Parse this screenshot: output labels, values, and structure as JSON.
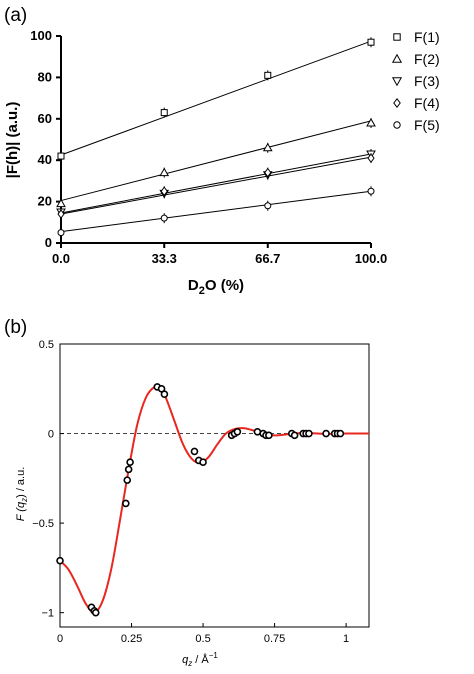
{
  "chart_data": [
    {
      "panel": "(a)",
      "type": "scatter",
      "xlabel": "D2O (%)",
      "ylabel": "|F(h)| (a.u.)",
      "xlim": [
        0,
        100
      ],
      "ylim": [
        0,
        100
      ],
      "x_ticks": [
        "0.0",
        "33.3",
        "66.7",
        "100.0"
      ],
      "y_ticks": [
        "0",
        "20",
        "40",
        "60",
        "80",
        "100"
      ],
      "legend_position": "right",
      "series": [
        {
          "name": "F(1)",
          "marker": "square",
          "x": [
            0,
            33.3,
            66.7,
            100
          ],
          "y": [
            42,
            63,
            81,
            97
          ]
        },
        {
          "name": "F(2)",
          "marker": "triangle-up",
          "x": [
            0,
            33.3,
            66.7,
            100
          ],
          "y": [
            19,
            34,
            46,
            58
          ]
        },
        {
          "name": "F(3)",
          "marker": "triangle-down",
          "x": [
            0,
            33.3,
            66.7,
            100
          ],
          "y": [
            15,
            24,
            33,
            43
          ]
        },
        {
          "name": "F(4)",
          "marker": "diamond",
          "x": [
            0,
            33.3,
            66.7,
            100
          ],
          "y": [
            14,
            25,
            34,
            41
          ]
        },
        {
          "name": "F(5)",
          "marker": "circle",
          "x": [
            0,
            33.3,
            66.7,
            100
          ],
          "y": [
            5,
            12,
            18,
            25
          ]
        }
      ],
      "fit_lines": [
        {
          "series": "F(1)",
          "intercept": 42.5,
          "slope": 0.55
        },
        {
          "series": "F(2)",
          "intercept": 20.5,
          "slope": 0.385
        },
        {
          "series": "F(3)",
          "intercept": 14.5,
          "slope": 0.285
        },
        {
          "series": "F(4)",
          "intercept": 14.0,
          "slope": 0.275
        },
        {
          "series": "F(5)",
          "intercept": 5.5,
          "slope": 0.195
        }
      ]
    },
    {
      "panel": "(b)",
      "type": "scatter",
      "xlabel": "q_z / Å⁻¹",
      "ylabel": "F (q_z) / a.u.",
      "xlim": [
        0,
        1.08
      ],
      "ylim": [
        -1.08,
        0.5
      ],
      "x_ticks": [
        "0",
        "0.25",
        "0.5",
        "0.75",
        "1"
      ],
      "y_ticks": [
        "0.5",
        "0",
        "-0.5",
        "-1"
      ],
      "zero_line": "dashed",
      "line_color": "#e8281f",
      "points": [
        {
          "x": 0.0,
          "y": -0.71
        },
        {
          "x": 0.11,
          "y": -0.97
        },
        {
          "x": 0.12,
          "y": -0.99
        },
        {
          "x": 0.125,
          "y": -1.0
        },
        {
          "x": 0.23,
          "y": -0.39
        },
        {
          "x": 0.235,
          "y": -0.26
        },
        {
          "x": 0.24,
          "y": -0.2
        },
        {
          "x": 0.245,
          "y": -0.16
        },
        {
          "x": 0.34,
          "y": 0.26
        },
        {
          "x": 0.355,
          "y": 0.25
        },
        {
          "x": 0.365,
          "y": 0.22
        },
        {
          "x": 0.47,
          "y": -0.1
        },
        {
          "x": 0.485,
          "y": -0.15
        },
        {
          "x": 0.5,
          "y": -0.16
        },
        {
          "x": 0.6,
          "y": -0.01
        },
        {
          "x": 0.61,
          "y": 0.0
        },
        {
          "x": 0.62,
          "y": 0.01
        },
        {
          "x": 0.69,
          "y": 0.01
        },
        {
          "x": 0.71,
          "y": 0.0
        },
        {
          "x": 0.72,
          "y": -0.01
        },
        {
          "x": 0.73,
          "y": -0.01
        },
        {
          "x": 0.81,
          "y": 0.0
        },
        {
          "x": 0.82,
          "y": -0.01
        },
        {
          "x": 0.85,
          "y": 0.0
        },
        {
          "x": 0.86,
          "y": 0.0
        },
        {
          "x": 0.87,
          "y": 0.0
        },
        {
          "x": 0.93,
          "y": 0.0
        },
        {
          "x": 0.96,
          "y": 0.0
        },
        {
          "x": 0.97,
          "y": 0.0
        },
        {
          "x": 0.98,
          "y": 0.0
        }
      ],
      "curve": [
        [
          0.0,
          -0.71
        ],
        [
          0.03,
          -0.76
        ],
        [
          0.06,
          -0.85
        ],
        [
          0.09,
          -0.95
        ],
        [
          0.12,
          -1.0
        ],
        [
          0.15,
          -0.93
        ],
        [
          0.18,
          -0.75
        ],
        [
          0.21,
          -0.48
        ],
        [
          0.24,
          -0.2
        ],
        [
          0.27,
          0.05
        ],
        [
          0.3,
          0.2
        ],
        [
          0.33,
          0.26
        ],
        [
          0.35,
          0.255
        ],
        [
          0.37,
          0.2
        ],
        [
          0.4,
          0.07
        ],
        [
          0.43,
          -0.06
        ],
        [
          0.46,
          -0.14
        ],
        [
          0.49,
          -0.165
        ],
        [
          0.52,
          -0.13
        ],
        [
          0.55,
          -0.06
        ],
        [
          0.58,
          0.0
        ],
        [
          0.61,
          0.025
        ],
        [
          0.64,
          0.03
        ],
        [
          0.67,
          0.02
        ],
        [
          0.7,
          0.005
        ],
        [
          0.73,
          -0.008
        ],
        [
          0.76,
          -0.01
        ],
        [
          0.79,
          -0.005
        ],
        [
          0.82,
          0.0
        ],
        [
          0.86,
          0.003
        ],
        [
          0.9,
          0.0
        ],
        [
          0.95,
          -0.002
        ],
        [
          1.0,
          0.0
        ],
        [
          1.08,
          0.0
        ]
      ]
    }
  ]
}
